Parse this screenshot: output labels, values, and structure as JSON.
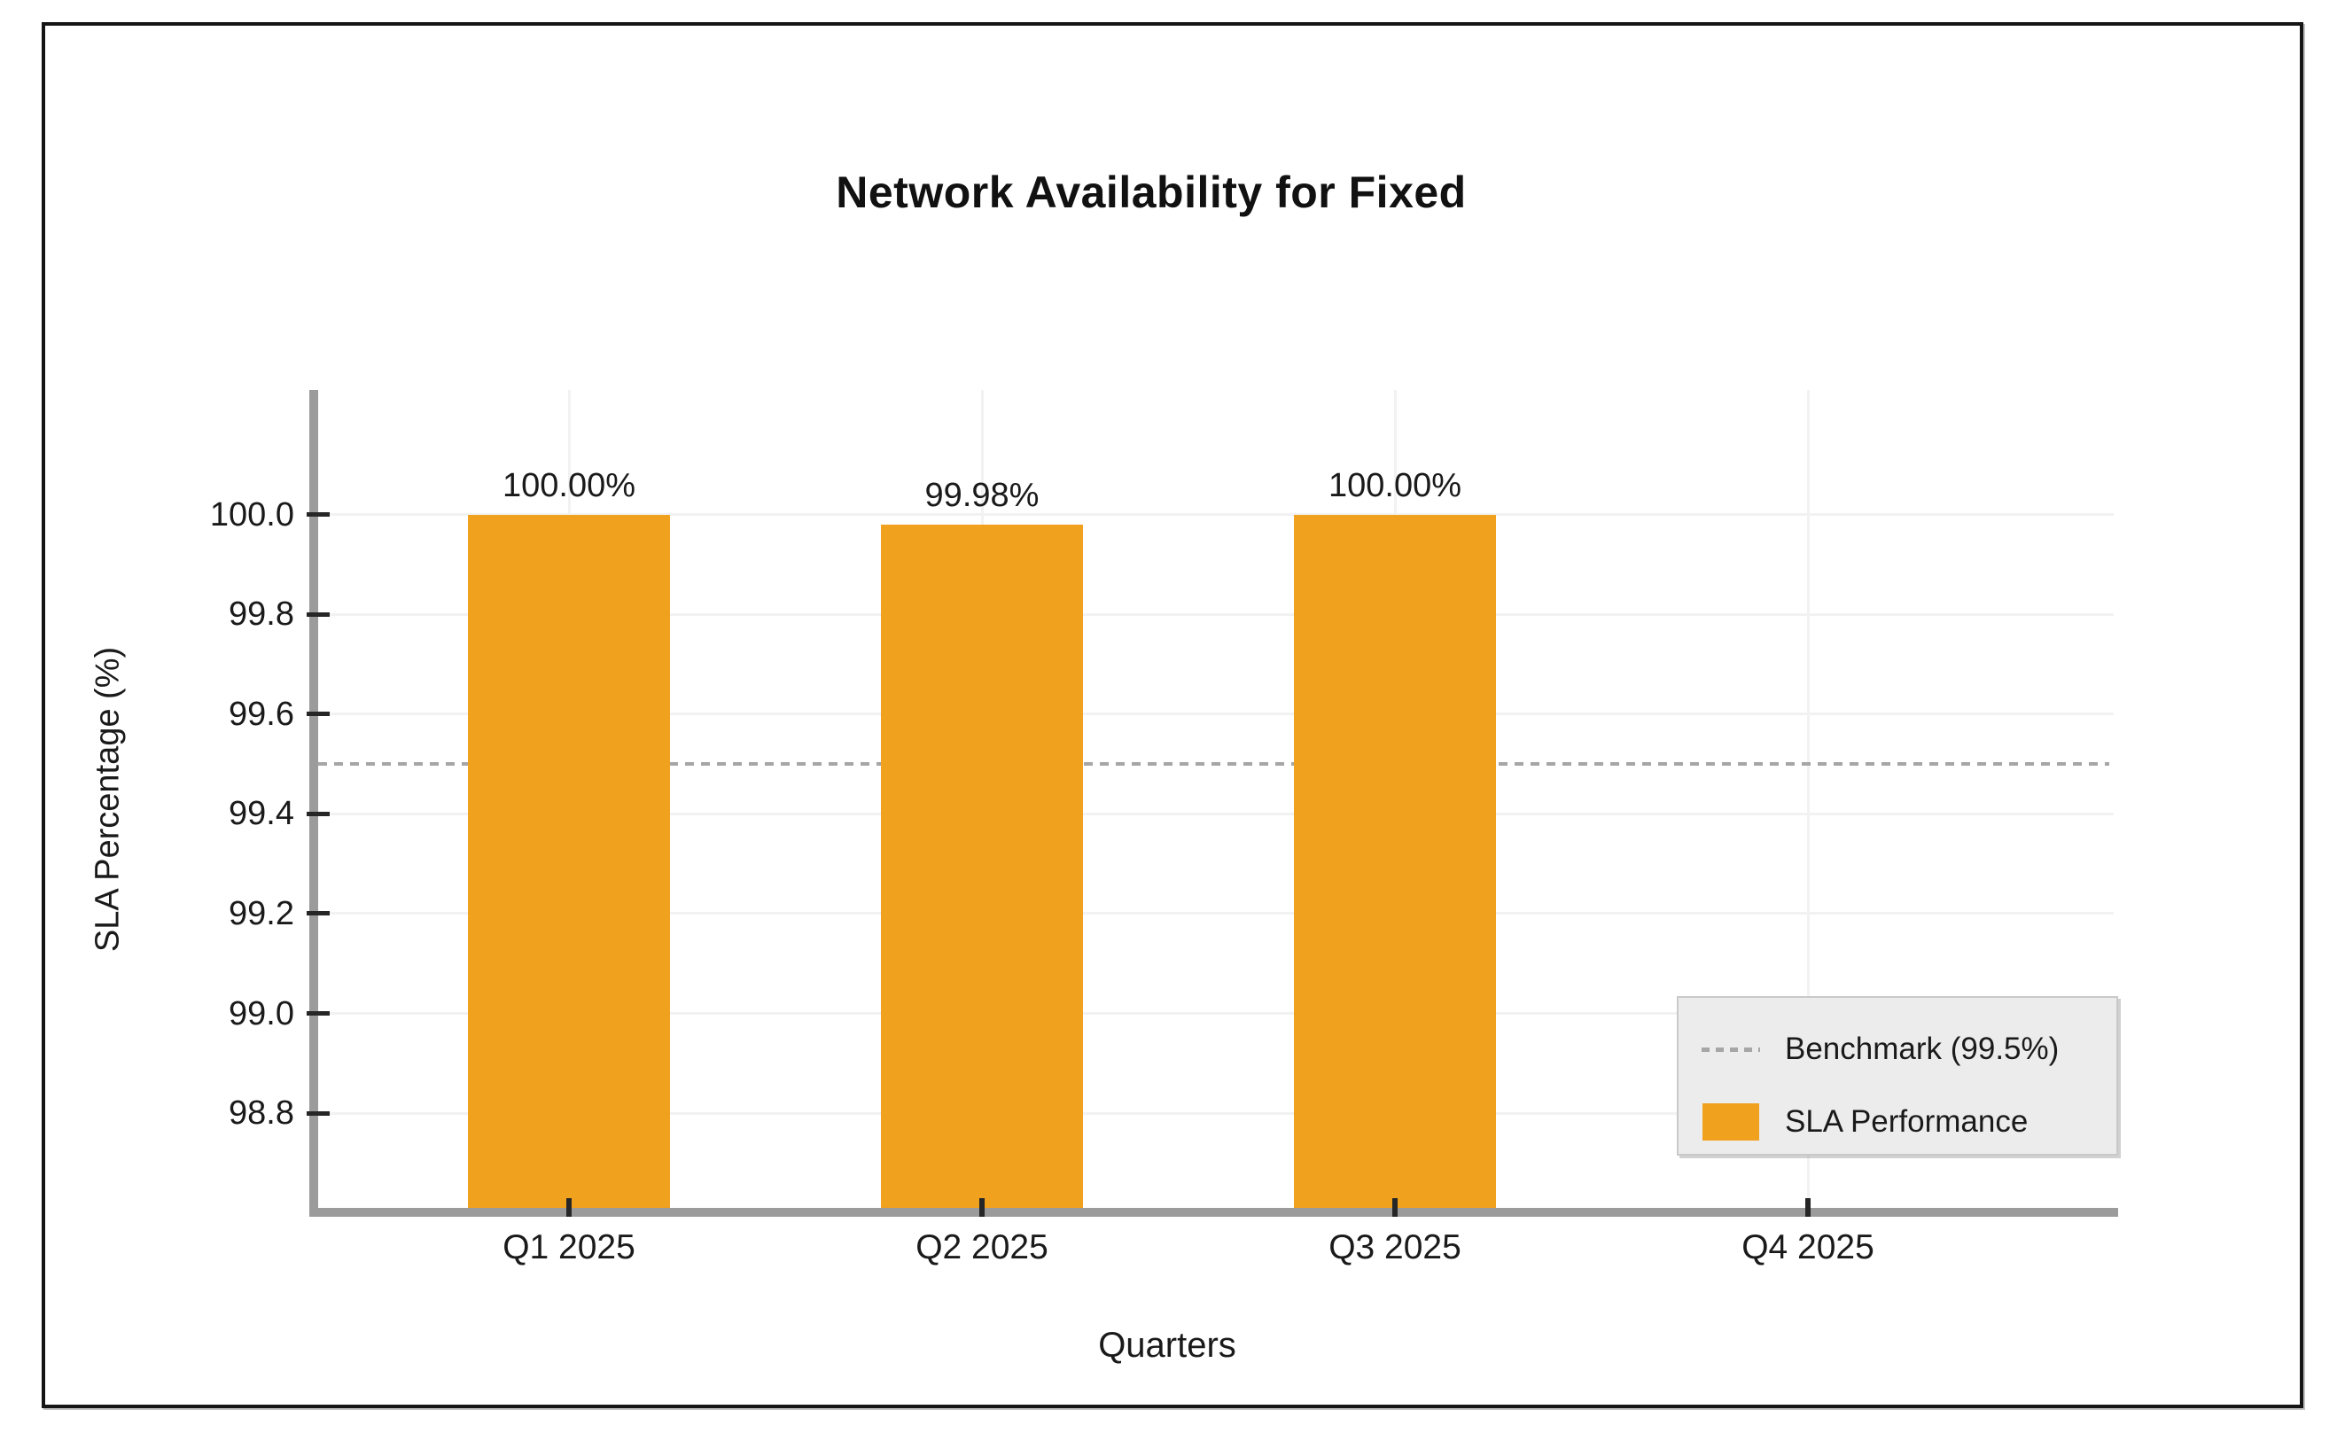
{
  "chart_data": {
    "type": "bar",
    "title": "Network Availability for Fixed",
    "xlabel": "Quarters",
    "ylabel": "SLA Percentage (%)",
    "categories": [
      "Q1 2025",
      "Q2 2025",
      "Q3 2025",
      "Q4 2025"
    ],
    "series": [
      {
        "name": "SLA Performance",
        "values": [
          100.0,
          99.98,
          100.0,
          null
        ],
        "data_labels": [
          "100.00%",
          "99.98%",
          "100.00%",
          null
        ],
        "color": "#f0a11e"
      }
    ],
    "benchmark": {
      "value": 99.5,
      "label": "Benchmark (99.5%)",
      "style": "dashed",
      "color": "#a6a6a6"
    },
    "ytick_labels": [
      "100.0",
      "99.8",
      "99.6",
      "99.4",
      "99.2",
      "99.0",
      "98.8"
    ],
    "ytick_values": [
      100.0,
      99.8,
      99.6,
      99.4,
      99.2,
      99.0,
      98.8
    ],
    "ylim": [
      98.61,
      100.25
    ],
    "grid": true,
    "legend": {
      "position": "lower right",
      "items": [
        {
          "label": "Benchmark (99.5%)",
          "swatch": "dashed-line"
        },
        {
          "label": "SLA Performance",
          "swatch": "filled-square"
        }
      ]
    }
  }
}
